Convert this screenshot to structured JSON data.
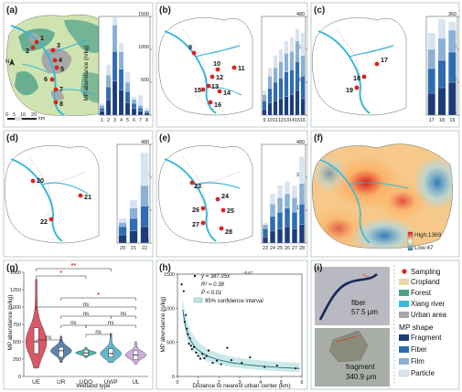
{
  "panel_labels": [
    "(a)",
    "(b)",
    "(c)",
    "(d)",
    "(e)",
    "(f)",
    "(g)",
    "(h)",
    "(i)"
  ],
  "map_panel_a": {
    "sites": [
      "1",
      "2",
      "3",
      "4",
      "5",
      "6",
      "7",
      "8"
    ],
    "north": "N",
    "scale_labels": [
      "0",
      "5",
      "10",
      "20"
    ],
    "scale_unit": "km"
  },
  "heat_legend": {
    "high": "High:1369",
    "low": "Low:47"
  },
  "colors": {
    "fragment": "#1d3d7a",
    "fiber": "#2f6cb2",
    "film": "#8bb0d6",
    "particle": "#d8e4f0",
    "river": "#3ab8d8",
    "sampling": "#e0201e",
    "cropland": "#e8d9a8",
    "forest": "#4fa08a",
    "urban": "#a8a8a8"
  },
  "legend": {
    "sampling": "Sampling",
    "cropland": "Cropland",
    "forest": "Forest",
    "river": "Xiang river",
    "urban": "Urban area",
    "shape_title": "MP shape",
    "fragment": "Fragment",
    "fiber": "Fiber",
    "film": "Film",
    "particle": "Particle"
  },
  "micrographs": {
    "fiber_label": "fiber",
    "fiber_size": "57.5 μm",
    "fragment_label": "fragment",
    "fragment_size": "340.9 μm"
  },
  "chart_data": [
    {
      "id": "a",
      "type": "bar",
      "stacked": true,
      "ylabel": "MP abundance (n/kg)",
      "ylim": [
        0,
        1500
      ],
      "yticks": [
        0,
        500,
        1000,
        1500
      ],
      "categories": [
        "1",
        "2",
        "3",
        "4",
        "5",
        "6",
        "7",
        "8"
      ],
      "series": [
        {
          "name": "Fragment",
          "values": [
            60,
            230,
            520,
            380,
            190,
            100,
            60,
            30
          ]
        },
        {
          "name": "Fiber",
          "values": [
            50,
            200,
            450,
            320,
            170,
            80,
            50,
            25
          ]
        },
        {
          "name": "Film",
          "values": [
            40,
            180,
            400,
            260,
            140,
            60,
            40,
            20
          ]
        },
        {
          "name": "Particle",
          "values": [
            30,
            160,
            120,
            140,
            150,
            40,
            150,
            35
          ]
        }
      ]
    },
    {
      "id": "b",
      "type": "bar",
      "stacked": true,
      "ylim": [
        0,
        480
      ],
      "yticks": [
        0,
        160,
        320,
        480
      ],
      "categories": [
        "9",
        "10",
        "11",
        "12",
        "13",
        "14",
        "15",
        "16"
      ],
      "series": [
        {
          "name": "Fragment",
          "values": [
            30,
            60,
            70,
            80,
            90,
            100,
            120,
            80
          ]
        },
        {
          "name": "Fiber",
          "values": [
            40,
            70,
            90,
            100,
            120,
            120,
            140,
            110
          ]
        },
        {
          "name": "Film",
          "values": [
            30,
            60,
            70,
            80,
            90,
            90,
            100,
            100
          ]
        },
        {
          "name": "Particle",
          "values": [
            20,
            40,
            60,
            60,
            60,
            70,
            60,
            110
          ]
        }
      ]
    },
    {
      "id": "c",
      "type": "bar",
      "stacked": true,
      "ylim": [
        0,
        360
      ],
      "yticks": [
        0,
        120,
        240,
        360
      ],
      "categories": [
        "17",
        "18",
        "19"
      ],
      "series": [
        {
          "name": "Fragment",
          "values": [
            80,
            100,
            120
          ]
        },
        {
          "name": "Fiber",
          "values": [
            90,
            100,
            110
          ]
        },
        {
          "name": "Film",
          "values": [
            70,
            80,
            80
          ]
        },
        {
          "name": "Particle",
          "values": [
            60,
            70,
            30
          ]
        }
      ]
    },
    {
      "id": "d",
      "type": "bar",
      "stacked": true,
      "ylim": [
        0,
        480
      ],
      "yticks": [
        0,
        160,
        320,
        480
      ],
      "categories": [
        "20",
        "21",
        "22"
      ],
      "series": [
        {
          "name": "Fragment",
          "values": [
            40,
            60,
            80
          ]
        },
        {
          "name": "Fiber",
          "values": [
            40,
            60,
            100
          ]
        },
        {
          "name": "Film",
          "values": [
            20,
            50,
            100
          ]
        },
        {
          "name": "Particle",
          "values": [
            20,
            40,
            160
          ]
        }
      ]
    },
    {
      "id": "e",
      "type": "bar",
      "stacked": true,
      "ylim": [
        0,
        480
      ],
      "yticks": [
        0,
        160,
        320,
        480
      ],
      "categories": [
        "23",
        "24",
        "25",
        "26",
        "27",
        "28"
      ],
      "series": [
        {
          "name": "Fragment",
          "values": [
            30,
            60,
            70,
            80,
            70,
            90
          ]
        },
        {
          "name": "Fiber",
          "values": [
            40,
            70,
            80,
            90,
            80,
            100
          ]
        },
        {
          "name": "Film",
          "values": [
            20,
            60,
            70,
            70,
            70,
            100
          ]
        },
        {
          "name": "Particle",
          "values": [
            10,
            50,
            60,
            60,
            60,
            130
          ]
        }
      ]
    },
    {
      "id": "g",
      "type": "violin",
      "xlabel": "Wetland type",
      "ylabel": "MP abundance (n/kg)",
      "ylim": [
        0,
        1500
      ],
      "yticks": [
        0,
        250,
        500,
        750,
        1000,
        1250,
        1500
      ],
      "categories": [
        "UE",
        "UR",
        "UDO",
        "UWP",
        "UL"
      ],
      "fill_colors": [
        "#d33a4e",
        "#3e6fa0",
        "#2aa79b",
        "#47a8c4",
        "#c79fd6"
      ],
      "medians": [
        500,
        370,
        340,
        330,
        310
      ],
      "q1": [
        330,
        280,
        300,
        280,
        240
      ],
      "q3": [
        700,
        420,
        380,
        400,
        370
      ],
      "min": [
        120,
        200,
        270,
        200,
        180
      ],
      "max": [
        1400,
        580,
        420,
        620,
        500
      ],
      "significance": [
        "ns",
        "*",
        "**",
        "ns",
        "ns",
        "ns",
        "*",
        "ns",
        "ns",
        "ns"
      ]
    },
    {
      "id": "h",
      "type": "scatter",
      "xlabel": "Distance to nearest urban center (km)",
      "ylabel": "MP abundance (n/kg)",
      "xlim": [
        0,
        6
      ],
      "ylim": [
        0,
        1500
      ],
      "xticks": [
        0,
        1,
        2,
        3,
        4,
        5,
        6
      ],
      "yticks": [
        0,
        500,
        1000,
        1500
      ],
      "equation": "y = 387.05x",
      "equation_exp": "−0.67",
      "r2": "R² = 0.38",
      "p": "P < 0.01",
      "ci_label": "95% confidence interval",
      "points": {
        "x": [
          0.2,
          0.3,
          0.4,
          0.45,
          0.5,
          0.55,
          0.6,
          0.7,
          0.8,
          0.9,
          1.0,
          1.1,
          1.2,
          1.3,
          1.5,
          1.7,
          1.9,
          2.1,
          2.4,
          2.6,
          3.1,
          3.5,
          4.2,
          4.8,
          5.7,
          0.35,
          0.65,
          1.4
        ],
        "y": [
          1350,
          1250,
          900,
          700,
          620,
          480,
          560,
          400,
          430,
          350,
          300,
          260,
          330,
          270,
          380,
          200,
          230,
          180,
          420,
          240,
          200,
          280,
          140,
          160,
          120,
          800,
          450,
          300
        ]
      },
      "fit": {
        "a": 387.05,
        "b": -0.67
      }
    }
  ]
}
